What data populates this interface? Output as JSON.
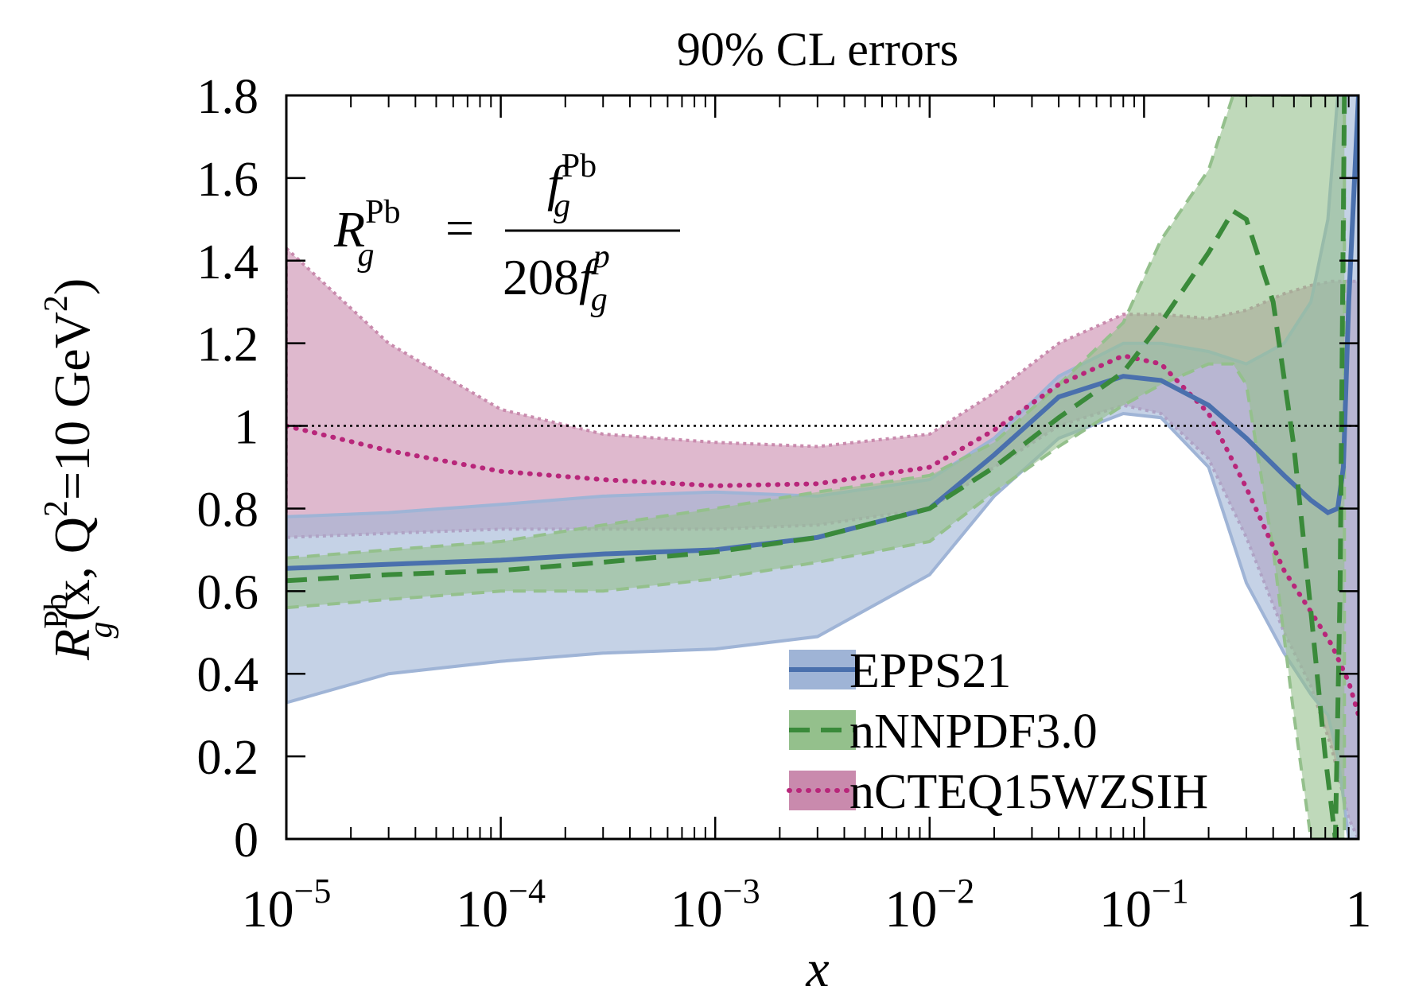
{
  "chart_data": {
    "type": "line",
    "title": "90% CL errors",
    "xlabel": "x",
    "ylabel": {
      "base": "R",
      "sub": "g",
      "sup": "Pb",
      "args": "(x, Q",
      "q_exp": "2",
      "eq": "=10 GeV",
      "unit_exp": "2",
      "close": ")"
    },
    "x_scale": "log",
    "xlim": [
      1e-05,
      1
    ],
    "ylim": [
      0,
      1.8
    ],
    "x_ticks": [
      {
        "value": 1e-05,
        "base": "10",
        "exp": "−5"
      },
      {
        "value": 0.0001,
        "base": "10",
        "exp": "−4"
      },
      {
        "value": 0.001,
        "base": "10",
        "exp": "−3"
      },
      {
        "value": 0.01,
        "base": "10",
        "exp": "−2"
      },
      {
        "value": 0.1,
        "base": "10",
        "exp": "−1"
      },
      {
        "value": 1,
        "base": "1",
        "exp": ""
      }
    ],
    "y_ticks": [
      {
        "value": 0,
        "label": "0"
      },
      {
        "value": 0.2,
        "label": "0.2"
      },
      {
        "value": 0.4,
        "label": "0.4"
      },
      {
        "value": 0.6,
        "label": "0.6"
      },
      {
        "value": 0.8,
        "label": "0.8"
      },
      {
        "value": 1.0,
        "label": "1"
      },
      {
        "value": 1.2,
        "label": "1.2"
      },
      {
        "value": 1.4,
        "label": "1.4"
      },
      {
        "value": 1.6,
        "label": "1.6"
      },
      {
        "value": 1.8,
        "label": "1.8"
      }
    ],
    "reference_line": 1.0,
    "formula": {
      "lhs_base": "R",
      "lhs_sub": "g",
      "lhs_sup": "Pb",
      "equals": "=",
      "num_base": "f",
      "num_sub": "g",
      "num_sup": "Pb",
      "den_coef": "208",
      "den_base": "f",
      "den_sub": "g",
      "den_sup": "p"
    },
    "legend_position": "bottom-right",
    "series": [
      {
        "name": "nCTEQ15WZSIH",
        "color": "#b8267a",
        "band_color": "#c98aad",
        "style": "dotted",
        "x": [
          1e-05,
          3e-05,
          0.0001,
          0.0003,
          0.001,
          0.003,
          0.01,
          0.02,
          0.04,
          0.08,
          0.12,
          0.2,
          0.3,
          0.45,
          0.6,
          0.75,
          0.9,
          1.0
        ],
        "y": [
          1.0,
          0.94,
          0.89,
          0.87,
          0.855,
          0.86,
          0.9,
          0.99,
          1.1,
          1.17,
          1.15,
          1.03,
          0.85,
          0.65,
          0.55,
          0.47,
          0.38,
          0.3
        ],
        "lower": [
          0.73,
          0.74,
          0.75,
          0.75,
          0.75,
          0.76,
          0.8,
          0.9,
          1.0,
          1.05,
          1.03,
          0.92,
          0.73,
          0.5,
          0.37,
          0.22,
          0.05,
          0.0
        ],
        "upper": [
          1.43,
          1.2,
          1.04,
          0.98,
          0.96,
          0.95,
          0.98,
          1.08,
          1.2,
          1.27,
          1.27,
          1.26,
          1.28,
          1.32,
          1.34,
          1.35,
          1.35,
          1.35
        ]
      },
      {
        "name": "EPPS21",
        "color": "#4a70ad",
        "band_color": "#9fb4d6",
        "style": "solid",
        "x": [
          1e-05,
          3e-05,
          0.0001,
          0.0003,
          0.001,
          0.003,
          0.01,
          0.02,
          0.04,
          0.08,
          0.12,
          0.2,
          0.3,
          0.45,
          0.6,
          0.72,
          0.8,
          0.85,
          0.9,
          1.0
        ],
        "y": [
          0.655,
          0.665,
          0.675,
          0.69,
          0.7,
          0.73,
          0.8,
          0.93,
          1.07,
          1.12,
          1.11,
          1.05,
          0.97,
          0.88,
          0.82,
          0.79,
          0.8,
          0.9,
          1.3,
          1.8
        ],
        "lower": [
          0.33,
          0.4,
          0.43,
          0.45,
          0.46,
          0.49,
          0.64,
          0.83,
          0.97,
          1.03,
          1.02,
          0.9,
          0.62,
          0.45,
          0.35,
          0.3,
          0.2,
          0.1,
          0.0,
          0.0
        ],
        "upper": [
          0.78,
          0.79,
          0.81,
          0.83,
          0.84,
          0.83,
          0.87,
          0.97,
          1.12,
          1.2,
          1.2,
          1.18,
          1.15,
          1.2,
          1.3,
          1.5,
          1.8,
          1.8,
          1.8,
          1.8
        ]
      },
      {
        "name": "nNNPDF3.0",
        "color": "#3a8a3a",
        "band_color": "#94c08c",
        "style": "dashed",
        "x": [
          1e-05,
          3e-05,
          0.0001,
          0.0003,
          0.001,
          0.003,
          0.01,
          0.02,
          0.04,
          0.08,
          0.12,
          0.2,
          0.26,
          0.3,
          0.4,
          0.5,
          0.6,
          0.7,
          0.78,
          0.82,
          0.86
        ],
        "y": [
          0.625,
          0.64,
          0.65,
          0.67,
          0.695,
          0.73,
          0.8,
          0.9,
          1.02,
          1.13,
          1.25,
          1.42,
          1.52,
          1.5,
          1.3,
          0.95,
          0.55,
          0.2,
          0.0,
          0.6,
          1.8
        ],
        "lower": [
          0.56,
          0.58,
          0.6,
          0.6,
          0.63,
          0.67,
          0.72,
          0.84,
          0.95,
          1.05,
          1.1,
          1.15,
          1.15,
          1.1,
          0.7,
          0.3,
          0.0,
          0.0,
          0.0,
          0.0,
          0.0
        ],
        "upper": [
          0.68,
          0.7,
          0.72,
          0.76,
          0.8,
          0.84,
          0.88,
          0.96,
          1.1,
          1.25,
          1.45,
          1.62,
          1.8,
          1.8,
          1.8,
          1.8,
          1.8,
          1.8,
          1.8,
          1.8,
          1.8
        ]
      }
    ]
  }
}
